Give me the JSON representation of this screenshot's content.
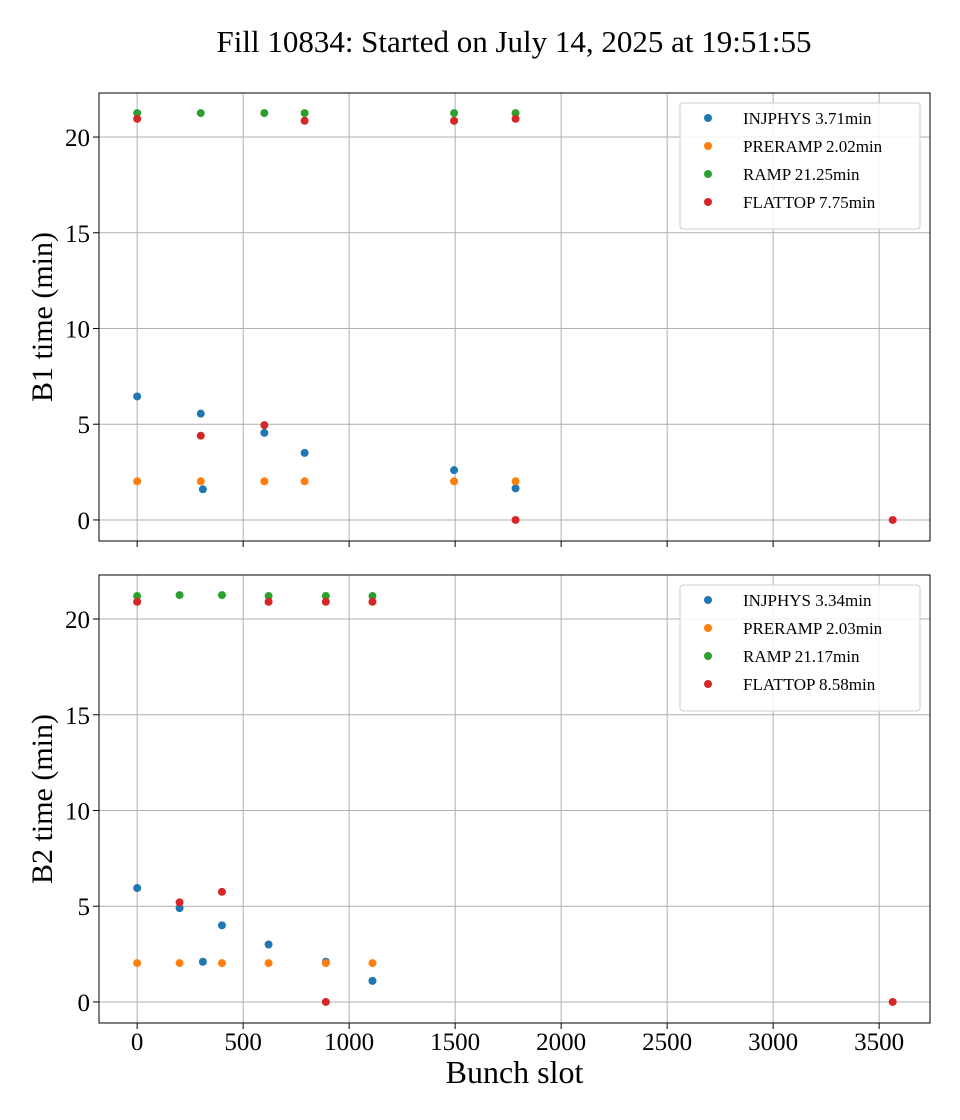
{
  "figure": {
    "title": "Fill 10834: Started on July 14, 2025 at 19:51:55",
    "colors": {
      "INJPHYS": "#1f77b4",
      "PRERAMP": "#ff7f0e",
      "RAMP": "#2ca02c",
      "FLATTOP": "#d62728"
    }
  },
  "chart_data": [
    {
      "type": "scatter",
      "title": "Fill 10834: Started on July 14, 2025 at 19:51:55",
      "xlabel": "",
      "ylabel": "B1 time (min)",
      "xlim": [
        -180,
        3740
      ],
      "ylim": [
        -1.1,
        22.3
      ],
      "xticks": [
        0,
        500,
        1000,
        1500,
        2000,
        2500,
        3000,
        3500
      ],
      "xtick_labels": [],
      "yticks": [
        0,
        5,
        10,
        15,
        20
      ],
      "ytick_labels": [
        "0",
        "5",
        "10",
        "15",
        "20"
      ],
      "grid": true,
      "legend_position": "top-right",
      "series": [
        {
          "name": "INJPHYS 3.71min",
          "color": "#1f77b4",
          "x": [
            0,
            300,
            310,
            600,
            790,
            1495,
            1785
          ],
          "y": [
            6.45,
            5.55,
            1.6,
            4.55,
            3.5,
            2.6,
            1.65
          ]
        },
        {
          "name": "PRERAMP 2.02min",
          "color": "#ff7f0e",
          "x": [
            0,
            300,
            600,
            790,
            1495,
            1785
          ],
          "y": [
            2.02,
            2.02,
            2.02,
            2.02,
            2.02,
            2.02
          ]
        },
        {
          "name": "RAMP 21.25min",
          "color": "#2ca02c",
          "x": [
            0,
            300,
            600,
            790,
            1495,
            1785
          ],
          "y": [
            21.25,
            21.25,
            21.25,
            21.25,
            21.25,
            21.25
          ]
        },
        {
          "name": "FLATTOP 7.75min",
          "color": "#d62728",
          "x": [
            0,
            300,
            600,
            790,
            1495,
            1785,
            1785,
            3564
          ],
          "y": [
            20.95,
            4.4,
            4.95,
            20.85,
            20.85,
            20.95,
            0.0,
            0.0
          ]
        }
      ]
    },
    {
      "type": "scatter",
      "xlabel": "Bunch slot",
      "ylabel": "B2 time (min)",
      "xlim": [
        -180,
        3740
      ],
      "ylim": [
        -1.1,
        22.3
      ],
      "xticks": [
        0,
        500,
        1000,
        1500,
        2000,
        2500,
        3000,
        3500
      ],
      "xtick_labels": [
        "0",
        "500",
        "1000",
        "1500",
        "2000",
        "2500",
        "3000",
        "3500"
      ],
      "yticks": [
        0,
        5,
        10,
        15,
        20
      ],
      "ytick_labels": [
        "0",
        "5",
        "10",
        "15",
        "20"
      ],
      "grid": true,
      "legend_position": "top-right",
      "series": [
        {
          "name": "INJPHYS 3.34min",
          "color": "#1f77b4",
          "x": [
            0,
            200,
            310,
            400,
            620,
            890,
            1110
          ],
          "y": [
            5.95,
            4.9,
            2.1,
            4.0,
            3.0,
            2.1,
            1.1
          ]
        },
        {
          "name": "PRERAMP 2.03min",
          "color": "#ff7f0e",
          "x": [
            0,
            200,
            400,
            620,
            890,
            1110
          ],
          "y": [
            2.03,
            2.03,
            2.03,
            2.03,
            2.03,
            2.03
          ]
        },
        {
          "name": "RAMP 21.17min",
          "color": "#2ca02c",
          "x": [
            0,
            200,
            400,
            620,
            890,
            1110
          ],
          "y": [
            21.2,
            21.25,
            21.25,
            21.2,
            21.2,
            21.2
          ]
        },
        {
          "name": "FLATTOP 8.58min",
          "color": "#d62728",
          "x": [
            0,
            200,
            400,
            620,
            890,
            1110,
            890,
            3564
          ],
          "y": [
            20.9,
            5.2,
            5.75,
            20.9,
            20.9,
            20.9,
            0.0,
            0.0
          ]
        }
      ]
    }
  ]
}
